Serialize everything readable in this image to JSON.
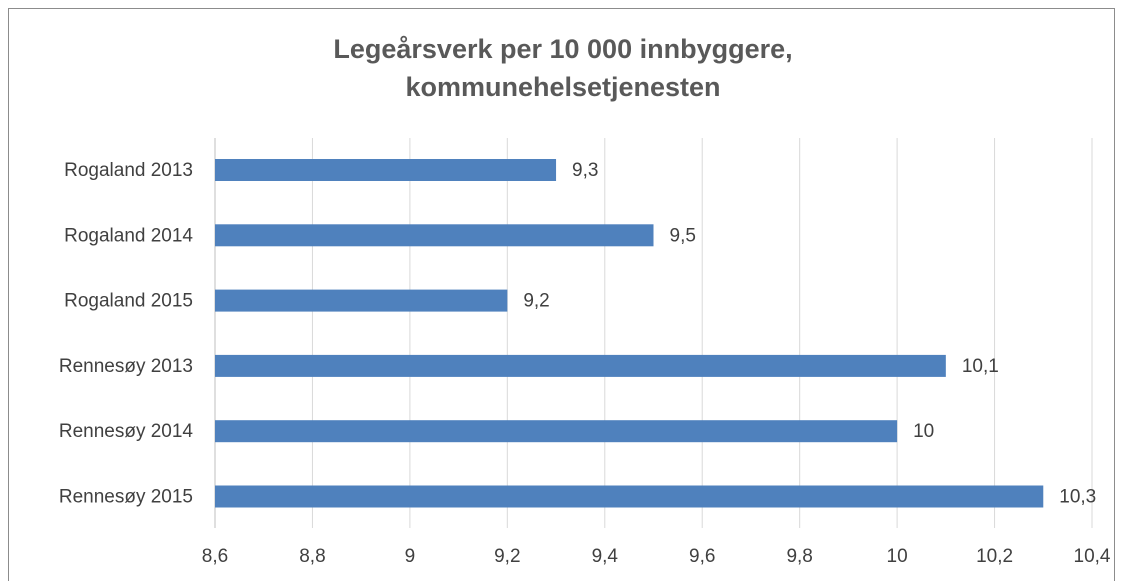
{
  "chart_data": {
    "type": "barh",
    "title": [
      "Legeårsverk per 10 000 innbyggere,",
      "kommunehelsetjenesten"
    ],
    "categories": [
      "Rogaland 2013",
      "Rogaland 2014",
      "Rogaland 2015",
      "Rennesøy 2013",
      "Rennesøy 2014",
      "Rennesøy 2015"
    ],
    "values": [
      9.3,
      9.5,
      9.2,
      10.1,
      10,
      10.3
    ],
    "value_labels": [
      "9,3",
      "9,5",
      "9,2",
      "10,1",
      "10",
      "10,3"
    ],
    "color": "#4f81bd",
    "xlim": [
      8.6,
      10.4
    ],
    "xticks": [
      {
        "value": 8.6,
        "label": "8,6"
      },
      {
        "value": 8.8,
        "label": "8,8"
      },
      9,
      {
        "value": 9.2,
        "label": "9,2"
      },
      {
        "value": 9.4,
        "label": "9,4"
      },
      {
        "value": 9.6,
        "label": "9,6"
      },
      {
        "value": 9.8,
        "label": "9,8"
      },
      10,
      {
        "value": 10.2,
        "label": "10,2"
      },
      {
        "value": 10.4,
        "label": "10,4"
      }
    ],
    "grid": true
  }
}
